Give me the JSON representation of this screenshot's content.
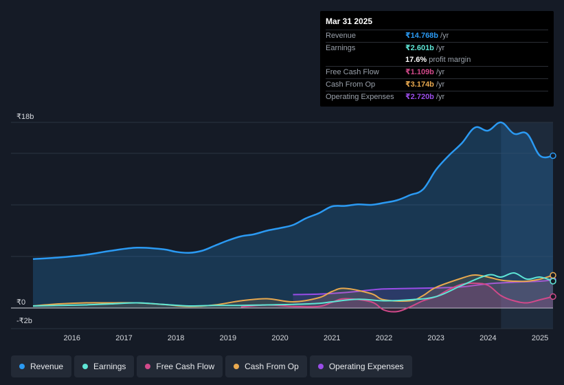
{
  "chart_data": {
    "type": "area",
    "y_unit_labels": [
      "₹18b",
      "₹0",
      "-₹2b"
    ],
    "ylim": [
      -2,
      18
    ],
    "x_ticks": [
      "2016",
      "2017",
      "2018",
      "2019",
      "2020",
      "2021",
      "2022",
      "2023",
      "2024",
      "2025"
    ],
    "x_tick_values": [
      2016,
      2017,
      2018,
      2019,
      2020,
      2021,
      2022,
      2023,
      2024,
      2025
    ],
    "xlim": [
      2014.8,
      2025.25
    ],
    "highlight_start": 2024.25,
    "series": [
      {
        "name": "Revenue",
        "color": "#2b9af3",
        "fill": true,
        "x": [
          2015.25,
          2015.75,
          2016.25,
          2016.75,
          2017.25,
          2017.75,
          2018.0,
          2018.25,
          2018.5,
          2018.75,
          2019.0,
          2019.25,
          2019.5,
          2019.75,
          2020.0,
          2020.25,
          2020.5,
          2020.75,
          2021.0,
          2021.25,
          2021.5,
          2021.75,
          2022.0,
          2022.25,
          2022.5,
          2022.75,
          2023.0,
          2023.25,
          2023.5,
          2023.75,
          2024.0,
          2024.25,
          2024.5,
          2024.75,
          2025.0,
          2025.25
        ],
        "y": [
          4.75,
          4.9,
          5.15,
          5.55,
          5.85,
          5.7,
          5.45,
          5.35,
          5.55,
          6.05,
          6.55,
          6.95,
          7.15,
          7.5,
          7.75,
          8.05,
          8.7,
          9.2,
          9.85,
          9.9,
          10.05,
          10.0,
          10.2,
          10.45,
          10.95,
          11.5,
          13.4,
          14.8,
          16.0,
          17.5,
          17.2,
          18.0,
          16.9,
          16.9,
          14.768,
          14.768
        ]
      },
      {
        "name": "Earnings",
        "color": "#5ee6d6",
        "fill": false,
        "x": [
          2015.25,
          2015.75,
          2016.25,
          2016.75,
          2017.25,
          2017.75,
          2018.25,
          2018.75,
          2019.25,
          2019.75,
          2020.25,
          2020.75,
          2021.0,
          2021.5,
          2022.0,
          2022.5,
          2023.0,
          2023.5,
          2024.0,
          2024.25,
          2024.5,
          2024.75,
          2025.0,
          2025.25
        ],
        "y": [
          0.2,
          0.25,
          0.3,
          0.4,
          0.5,
          0.35,
          0.2,
          0.25,
          0.25,
          0.3,
          0.35,
          0.45,
          0.6,
          0.85,
          0.7,
          0.8,
          1.1,
          2.2,
          3.2,
          3.0,
          3.4,
          2.8,
          3.0,
          2.601
        ]
      },
      {
        "name": "Free Cash Flow",
        "color": "#d2498a",
        "fill": true,
        "x": [
          2019.25,
          2019.75,
          2020.25,
          2020.75,
          2021.0,
          2021.25,
          2021.75,
          2022.0,
          2022.25,
          2022.5,
          2022.75,
          2023.0,
          2023.25,
          2023.5,
          2023.75,
          2024.0,
          2024.25,
          2024.5,
          2024.75,
          2025.0,
          2025.25
        ],
        "y": [
          0.1,
          0.3,
          0.15,
          0.15,
          0.55,
          0.9,
          0.6,
          -0.2,
          -0.35,
          0.1,
          0.7,
          1.1,
          1.8,
          2.3,
          2.4,
          2.2,
          1.2,
          0.7,
          0.5,
          0.8,
          1.109
        ]
      },
      {
        "name": "Cash From Op",
        "color": "#e9a94f",
        "fill": true,
        "x": [
          2015.25,
          2015.75,
          2016.25,
          2016.75,
          2017.25,
          2017.75,
          2018.25,
          2018.75,
          2019.25,
          2019.75,
          2020.25,
          2020.75,
          2021.0,
          2021.25,
          2021.75,
          2022.0,
          2022.5,
          2022.75,
          2023.0,
          2023.5,
          2023.75,
          2024.0,
          2024.25,
          2024.5,
          2024.75,
          2025.0,
          2025.25
        ],
        "y": [
          0.2,
          0.4,
          0.5,
          0.5,
          0.5,
          0.35,
          0.15,
          0.3,
          0.7,
          0.9,
          0.6,
          1.0,
          1.6,
          1.9,
          1.4,
          0.8,
          0.7,
          1.2,
          2.0,
          2.9,
          3.2,
          3.0,
          2.7,
          2.6,
          2.6,
          2.8,
          3.174
        ]
      },
      {
        "name": "Operating Expenses",
        "color": "#9a4de8",
        "fill": true,
        "x": [
          2020.25,
          2020.75,
          2021.25,
          2021.75,
          2022.0,
          2022.5,
          2023.0,
          2023.5,
          2024.0,
          2024.5,
          2025.0,
          2025.25
        ],
        "y": [
          1.3,
          1.35,
          1.5,
          1.75,
          1.85,
          1.9,
          1.95,
          2.05,
          2.35,
          2.5,
          2.6,
          2.72
        ]
      }
    ]
  },
  "tooltip": {
    "date": "Mar 31 2025",
    "rows": [
      {
        "label": "Revenue",
        "value": "₹14.768b",
        "unit": "/yr",
        "color": "#2b9af3"
      },
      {
        "label": "Earnings",
        "value": "₹2.601b",
        "unit": "/yr",
        "color": "#5ee6d6"
      },
      {
        "label": "",
        "value": "17.6%",
        "unit": "profit margin",
        "color": "#ffffff"
      },
      {
        "label": "Free Cash Flow",
        "value": "₹1.109b",
        "unit": "/yr",
        "color": "#d2498a"
      },
      {
        "label": "Cash From Op",
        "value": "₹3.174b",
        "unit": "/yr",
        "color": "#e9a94f"
      },
      {
        "label": "Operating Expenses",
        "value": "₹2.720b",
        "unit": "/yr",
        "color": "#9a4de8"
      }
    ]
  },
  "legend": [
    {
      "label": "Revenue",
      "color": "#2b9af3"
    },
    {
      "label": "Earnings",
      "color": "#5ee6d6"
    },
    {
      "label": "Free Cash Flow",
      "color": "#d2498a"
    },
    {
      "label": "Cash From Op",
      "color": "#e9a94f"
    },
    {
      "label": "Operating Expenses",
      "color": "#9a4de8"
    }
  ]
}
